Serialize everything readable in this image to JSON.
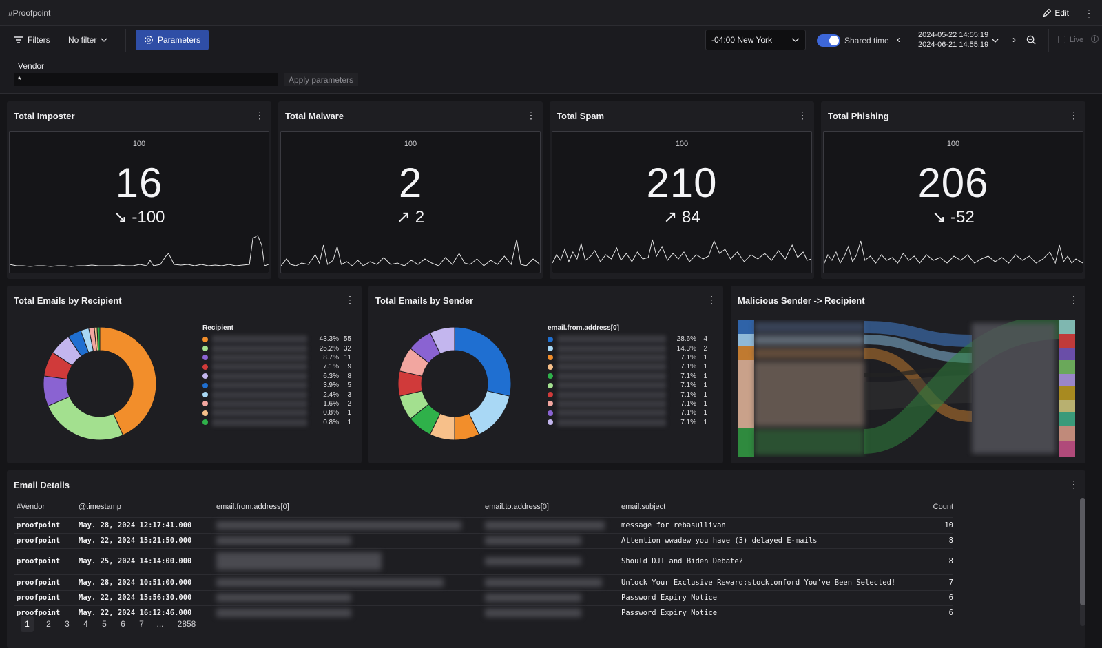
{
  "header": {
    "title": "#Proofpoint",
    "edit_label": "Edit"
  },
  "toolbar": {
    "filters_label": "Filters",
    "filter_value": "No filter",
    "parameters_label": "Parameters",
    "timezone": "-04:00 New York",
    "shared_time_label": "Shared time",
    "time_start": "2024-05-22 14:55:19",
    "time_end": "2024-06-21 14:55:19",
    "live_label": "Live"
  },
  "params": {
    "vendor_label": "Vendor",
    "vendor_value": "*",
    "apply_label": "Apply parameters"
  },
  "kpis": [
    {
      "title": "Total Imposter",
      "max": "100",
      "value": "16",
      "delta": "-100",
      "trend": "down"
    },
    {
      "title": "Total Malware",
      "max": "100",
      "value": "2",
      "delta": "2",
      "trend": "up"
    },
    {
      "title": "Total Spam",
      "max": "100",
      "value": "210",
      "delta": "84",
      "trend": "up"
    },
    {
      "title": "Total Phishing",
      "max": "100",
      "value": "206",
      "delta": "-52",
      "trend": "down"
    }
  ],
  "panels": {
    "recipient_title": "Total Emails by Recipient",
    "sender_title": "Total Emails by Sender",
    "sankey_title": "Malicious Sender -> Recipient",
    "details_title": "Email Details"
  },
  "chart_data": [
    {
      "type": "pie",
      "title": "Total Emails by Recipient",
      "legend_title": "Recipient",
      "series": [
        {
          "color": "#f28e2b",
          "pct": "43.3%",
          "value": 55
        },
        {
          "color": "#a3e08f",
          "pct": "25.2%",
          "value": 32
        },
        {
          "color": "#8a63d2",
          "pct": "8.7%",
          "value": 11
        },
        {
          "color": "#d03a3a",
          "pct": "7.1%",
          "value": 9
        },
        {
          "color": "#c3b6ee",
          "pct": "6.3%",
          "value": 8
        },
        {
          "color": "#1f6fd1",
          "pct": "3.9%",
          "value": 5
        },
        {
          "color": "#a9d8f5",
          "pct": "2.4%",
          "value": 3
        },
        {
          "color": "#f2a6a0",
          "pct": "1.6%",
          "value": 2
        },
        {
          "color": "#f7c08a",
          "pct": "0.8%",
          "value": 1
        },
        {
          "color": "#2fb14a",
          "pct": "0.8%",
          "value": 1
        }
      ]
    },
    {
      "type": "pie",
      "title": "Total Emails by Sender",
      "legend_title": "email.from.address[0]",
      "series": [
        {
          "color": "#1f6fd1",
          "pct": "28.6%",
          "value": 4
        },
        {
          "color": "#a9d8f5",
          "pct": "14.3%",
          "value": 2
        },
        {
          "color": "#f28e2b",
          "pct": "7.1%",
          "value": 1
        },
        {
          "color": "#f7c08a",
          "pct": "7.1%",
          "value": 1
        },
        {
          "color": "#2fb14a",
          "pct": "7.1%",
          "value": 1
        },
        {
          "color": "#a3e08f",
          "pct": "7.1%",
          "value": 1
        },
        {
          "color": "#d03a3a",
          "pct": "7.1%",
          "value": 1
        },
        {
          "color": "#f2a6a0",
          "pct": "7.1%",
          "value": 1
        },
        {
          "color": "#8a63d2",
          "pct": "7.1%",
          "value": 1
        },
        {
          "color": "#c3b6ee",
          "pct": "7.1%",
          "value": 1
        }
      ]
    }
  ],
  "table": {
    "columns": [
      "#Vendor",
      "@timestamp",
      "email.from.address[0]",
      "email.to.address[0]",
      "email.subject",
      "Count"
    ],
    "rows": [
      {
        "vendor": "proofpoint",
        "timestamp": "May. 28, 2024 12:17:41.000",
        "subject": "message for rebasullivan",
        "count": "10"
      },
      {
        "vendor": "proofpoint",
        "timestamp": "May. 22, 2024 15:21:50.000",
        "subject": "Attention wwadew you have (3) delayed E-mails",
        "count": "8"
      },
      {
        "vendor": "proofpoint",
        "timestamp": "May. 25, 2024 14:14:00.000",
        "subject": "Should DJT and Biden Debate?",
        "count": "8"
      },
      {
        "vendor": "proofpoint",
        "timestamp": "May. 28, 2024 10:51:00.000",
        "subject": "Unlock Your Exclusive Reward:stocktonford You've Been Selected!",
        "count": "7"
      },
      {
        "vendor": "proofpoint",
        "timestamp": "May. 22, 2024 15:56:30.000",
        "subject": "Password Expiry Notice",
        "count": "6"
      },
      {
        "vendor": "proofpoint",
        "timestamp": "May. 22, 2024 16:12:46.000",
        "subject": "Password Expiry Notice",
        "count": "6"
      }
    ]
  },
  "pagination": {
    "pages": [
      "1",
      "2",
      "3",
      "4",
      "5",
      "6",
      "7",
      "...",
      "2858"
    ]
  }
}
